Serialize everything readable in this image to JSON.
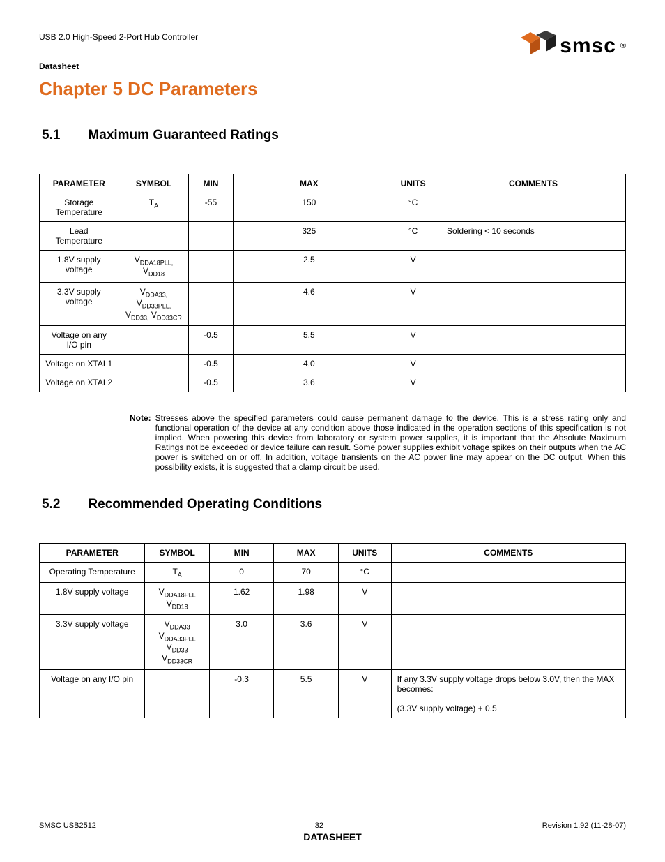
{
  "header": {
    "doc_title": "USB 2.0 High-Speed 2-Port Hub Controller",
    "doc_type": "Datasheet",
    "logo_text": "smsc",
    "logo_reg": "®"
  },
  "chapter": {
    "title": "Chapter 5 DC Parameters"
  },
  "section51": {
    "num": "5.1",
    "title": "Maximum Guaranteed Ratings"
  },
  "table1": {
    "headers": [
      "PARAMETER",
      "SYMBOL",
      "MIN",
      "MAX",
      "UNITS",
      "COMMENTS"
    ],
    "rows": [
      {
        "param": "Storage Temperature",
        "symbol_html": "T<sub>A</sub>",
        "min": "-55",
        "max": "150",
        "units": "°C",
        "comments": ""
      },
      {
        "param": "Lead Temperature",
        "symbol_html": "",
        "min": "",
        "max": "325",
        "units": "°C",
        "comments": "Soldering < 10 seconds"
      },
      {
        "param": "1.8V supply voltage",
        "symbol_html": "V<sub>DDA18PLL,</sub> V<sub>DD18</sub>",
        "min": "",
        "max": "2.5",
        "units": "V",
        "comments": ""
      },
      {
        "param": "3.3V supply voltage",
        "symbol_html": "V<sub>DDA33,</sub> V<sub>DD33PLL,</sub> V<sub>DD33,</sub> V<sub>DD33CR</sub>",
        "min": "",
        "max": "4.6",
        "units": "V",
        "comments": ""
      },
      {
        "param": "Voltage on any I/O pin",
        "symbol_html": "",
        "min": "-0.5",
        "max": "5.5",
        "units": "V",
        "comments": ""
      },
      {
        "param": "Voltage on XTAL1",
        "symbol_html": "",
        "min": "-0.5",
        "max": "4.0",
        "units": "V",
        "comments": ""
      },
      {
        "param": "Voltage on XTAL2",
        "symbol_html": "",
        "min": "-0.5",
        "max": "3.6",
        "units": "V",
        "comments": ""
      }
    ]
  },
  "note": {
    "label": "Note:",
    "text": "Stresses above the specified parameters could cause permanent damage to the device. This is a stress rating only and functional operation of the device at any condition above those indicated in the operation sections of this specification is not implied. When powering this device from laboratory or system power supplies, it is important that the Absolute Maximum Ratings not be exceeded or device failure can result. Some power supplies exhibit voltage spikes on their outputs when the AC power is switched on or off. In addition, voltage transients on the AC power line may appear on the DC output. When this possibility exists, it is suggested that a clamp circuit be used."
  },
  "section52": {
    "num": "5.2",
    "title": "Recommended Operating Conditions"
  },
  "table2": {
    "headers": [
      "PARAMETER",
      "SYMBOL",
      "MIN",
      "MAX",
      "UNITS",
      "COMMENTS"
    ],
    "rows": [
      {
        "param": "Operating Temperature",
        "symbol_html": "T<sub>A</sub>",
        "min": "0",
        "max": "70",
        "units": "°C",
        "comments_html": ""
      },
      {
        "param": "1.8V supply voltage",
        "symbol_html": "V<sub>DDA18PLL</sub> V<sub>DD18</sub>",
        "min": "1.62",
        "max": "1.98",
        "units": "V",
        "comments_html": ""
      },
      {
        "param": "3.3V supply voltage",
        "symbol_html": "V<sub>DDA33</sub> V<sub>DDA33PLL</sub> V<sub>DD33</sub> V<sub>DD33CR</sub>",
        "min": "3.0",
        "max": "3.6",
        "units": "V",
        "comments_html": ""
      },
      {
        "param": "Voltage on any I/O pin",
        "symbol_html": "",
        "min": "-0.3",
        "max": "5.5",
        "units": "V",
        "comments_html": "If any 3.3V supply voltage drops below 3.0V, then the MAX becomes:<br><br>(3.3V supply voltage) + 0.5"
      }
    ]
  },
  "footer": {
    "left": "SMSC USB2512",
    "page": "32",
    "right": "Revision 1.92 (11-28-07)",
    "ds": "DATASHEET"
  }
}
